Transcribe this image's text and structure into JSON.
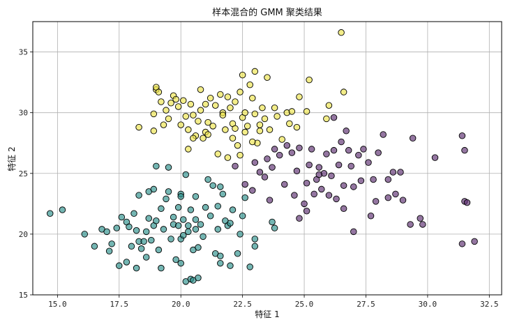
{
  "chart_data": {
    "type": "scatter",
    "title": "样本混合的 GMM 聚类结果",
    "xlabel": "特征 1",
    "ylabel": "特征 2",
    "xlim": [
      14.0,
      33.0
    ],
    "ylim": [
      15.0,
      37.5
    ],
    "xticks": [
      "15.0",
      "17.5",
      "20.0",
      "22.5",
      "25.0",
      "27.5",
      "30.0",
      "32.5"
    ],
    "yticks": [
      "15",
      "20",
      "25",
      "30",
      "35"
    ],
    "grid": true,
    "series": [
      {
        "color": "#2a8f8a",
        "points": [
          [
            14.7,
            21.7
          ],
          [
            15.2,
            22.0
          ],
          [
            16.1,
            20.0
          ],
          [
            16.5,
            19.0
          ],
          [
            16.8,
            20.4
          ],
          [
            17.0,
            20.2
          ],
          [
            17.1,
            18.6
          ],
          [
            17.2,
            19.2
          ],
          [
            17.4,
            20.5
          ],
          [
            17.5,
            17.4
          ],
          [
            17.6,
            21.4
          ],
          [
            17.8,
            17.7
          ],
          [
            17.8,
            21.0
          ],
          [
            17.9,
            20.6
          ],
          [
            18.0,
            19.0
          ],
          [
            18.1,
            21.7
          ],
          [
            18.2,
            17.2
          ],
          [
            18.2,
            20.3
          ],
          [
            18.3,
            19.4
          ],
          [
            18.3,
            23.2
          ],
          [
            18.4,
            18.8
          ],
          [
            18.5,
            19.4
          ],
          [
            18.6,
            20.2
          ],
          [
            18.7,
            21.3
          ],
          [
            18.7,
            23.5
          ],
          [
            18.8,
            19.5
          ],
          [
            18.9,
            23.7
          ],
          [
            18.9,
            20.7
          ],
          [
            19.0,
            21.1
          ],
          [
            19.0,
            25.6
          ],
          [
            19.1,
            18.7
          ],
          [
            19.2,
            17.2
          ],
          [
            19.2,
            22.1
          ],
          [
            19.3,
            20.4
          ],
          [
            19.5,
            23.5
          ],
          [
            19.5,
            25.5
          ],
          [
            19.6,
            19.6
          ],
          [
            19.7,
            20.8
          ],
          [
            19.7,
            21.4
          ],
          [
            19.8,
            17.9
          ],
          [
            19.9,
            20.7
          ],
          [
            19.9,
            22.2
          ],
          [
            20.0,
            23.3
          ],
          [
            20.0,
            19.6
          ],
          [
            20.0,
            17.6
          ],
          [
            20.0,
            23.1
          ],
          [
            20.1,
            21.2
          ],
          [
            20.1,
            19.9
          ],
          [
            20.2,
            24.9
          ],
          [
            20.2,
            16.1
          ],
          [
            20.3,
            20.7
          ],
          [
            20.4,
            22.0
          ],
          [
            20.4,
            16.3
          ],
          [
            20.5,
            16.2
          ],
          [
            20.5,
            18.7
          ],
          [
            20.6,
            23.1
          ],
          [
            20.6,
            21.2
          ],
          [
            20.6,
            20.4
          ],
          [
            20.7,
            18.9
          ],
          [
            20.7,
            16.4
          ],
          [
            20.8,
            20.8
          ],
          [
            20.9,
            19.8
          ],
          [
            21.0,
            22.2
          ],
          [
            21.1,
            24.5
          ],
          [
            21.2,
            21.5
          ],
          [
            21.3,
            24.0
          ],
          [
            21.4,
            18.4
          ],
          [
            21.5,
            20.4
          ],
          [
            21.6,
            23.9
          ],
          [
            21.6,
            18.2
          ],
          [
            21.6,
            17.6
          ],
          [
            21.7,
            23.3
          ],
          [
            21.8,
            21.1
          ],
          [
            21.9,
            20.7
          ],
          [
            22.0,
            20.9
          ],
          [
            22.0,
            17.4
          ],
          [
            22.1,
            22.0
          ],
          [
            22.3,
            18.4
          ],
          [
            22.5,
            21.5
          ],
          [
            22.6,
            23.0
          ],
          [
            22.8,
            17.3
          ],
          [
            23.0,
            19.6
          ],
          [
            23.0,
            19.0
          ],
          [
            23.7,
            21.0
          ],
          [
            23.8,
            20.5
          ],
          [
            19.4,
            22.9
          ],
          [
            21.5,
            22.3
          ],
          [
            18.6,
            18.1
          ],
          [
            20.3,
            20.2
          ],
          [
            22.4,
            20.0
          ]
        ]
      },
      {
        "color": "#ede34a",
        "points": [
          [
            18.3,
            28.8
          ],
          [
            18.9,
            28.5
          ],
          [
            18.9,
            29.9
          ],
          [
            19.0,
            31.9
          ],
          [
            19.0,
            32.1
          ],
          [
            19.1,
            31.7
          ],
          [
            19.2,
            30.9
          ],
          [
            19.3,
            29.0
          ],
          [
            19.4,
            30.2
          ],
          [
            19.5,
            29.5
          ],
          [
            19.6,
            30.8
          ],
          [
            19.7,
            31.4
          ],
          [
            19.8,
            31.1
          ],
          [
            19.9,
            30.5
          ],
          [
            20.0,
            29.0
          ],
          [
            20.1,
            31.0
          ],
          [
            20.2,
            29.7
          ],
          [
            20.3,
            27.0
          ],
          [
            20.4,
            30.7
          ],
          [
            20.5,
            29.8
          ],
          [
            20.6,
            28.1
          ],
          [
            20.7,
            29.3
          ],
          [
            20.8,
            30.2
          ],
          [
            20.9,
            27.9
          ],
          [
            21.0,
            30.7
          ],
          [
            21.0,
            28.4
          ],
          [
            21.1,
            29.2
          ],
          [
            21.2,
            31.2
          ],
          [
            21.3,
            28.9
          ],
          [
            21.4,
            30.6
          ],
          [
            21.5,
            26.6
          ],
          [
            21.6,
            31.5
          ],
          [
            21.7,
            30.0
          ],
          [
            21.8,
            28.6
          ],
          [
            21.9,
            31.3
          ],
          [
            22.0,
            30.4
          ],
          [
            22.1,
            29.1
          ],
          [
            22.2,
            28.7
          ],
          [
            22.2,
            30.9
          ],
          [
            22.3,
            27.3
          ],
          [
            22.4,
            31.7
          ],
          [
            22.5,
            29.6
          ],
          [
            22.5,
            33.1
          ],
          [
            22.6,
            30.0
          ],
          [
            22.7,
            28.9
          ],
          [
            22.8,
            32.3
          ],
          [
            22.9,
            31.2
          ],
          [
            23.0,
            33.4
          ],
          [
            23.0,
            29.9
          ],
          [
            23.1,
            27.5
          ],
          [
            23.2,
            28.5
          ],
          [
            23.3,
            30.4
          ],
          [
            23.4,
            29.5
          ],
          [
            23.5,
            32.9
          ],
          [
            23.6,
            28.6
          ],
          [
            23.8,
            30.4
          ],
          [
            23.9,
            29.7
          ],
          [
            24.1,
            27.8
          ],
          [
            24.3,
            30.0
          ],
          [
            24.4,
            29.1
          ],
          [
            24.5,
            30.1
          ],
          [
            24.7,
            28.8
          ],
          [
            24.8,
            31.3
          ],
          [
            25.1,
            30.1
          ],
          [
            25.2,
            32.7
          ],
          [
            25.9,
            29.5
          ],
          [
            26.0,
            30.6
          ],
          [
            26.6,
            31.7
          ],
          [
            26.5,
            36.6
          ],
          [
            22.4,
            26.5
          ],
          [
            21.9,
            26.3
          ],
          [
            20.5,
            27.9
          ],
          [
            22.9,
            27.6
          ],
          [
            23.2,
            29.0
          ],
          [
            21.1,
            28.2
          ],
          [
            22.6,
            28.4
          ],
          [
            20.8,
            31.9
          ],
          [
            21.7,
            29.8
          ],
          [
            20.3,
            28.6
          ],
          [
            22.1,
            27.9
          ]
        ]
      },
      {
        "color": "#5b2c6f",
        "points": [
          [
            22.2,
            25.6
          ],
          [
            22.6,
            24.1
          ],
          [
            22.9,
            23.6
          ],
          [
            23.0,
            25.9
          ],
          [
            23.2,
            25.1
          ],
          [
            23.4,
            24.7
          ],
          [
            23.5,
            26.2
          ],
          [
            23.6,
            22.8
          ],
          [
            23.7,
            25.5
          ],
          [
            23.8,
            27.0
          ],
          [
            24.0,
            26.5
          ],
          [
            24.2,
            24.1
          ],
          [
            24.3,
            27.3
          ],
          [
            24.5,
            26.7
          ],
          [
            24.6,
            23.2
          ],
          [
            24.7,
            25.2
          ],
          [
            24.8,
            27.1
          ],
          [
            25.0,
            22.5
          ],
          [
            25.1,
            24.2
          ],
          [
            25.2,
            25.7
          ],
          [
            25.3,
            27.0
          ],
          [
            25.4,
            23.3
          ],
          [
            25.5,
            24.5
          ],
          [
            25.6,
            25.5
          ],
          [
            25.7,
            23.7
          ],
          [
            25.8,
            25.0
          ],
          [
            25.9,
            26.6
          ],
          [
            26.0,
            23.2
          ],
          [
            26.1,
            24.8
          ],
          [
            26.2,
            26.9
          ],
          [
            26.3,
            22.9
          ],
          [
            26.4,
            25.7
          ],
          [
            26.5,
            27.6
          ],
          [
            26.6,
            24.0
          ],
          [
            26.7,
            28.5
          ],
          [
            26.8,
            26.9
          ],
          [
            26.9,
            25.6
          ],
          [
            27.0,
            23.9
          ],
          [
            27.0,
            20.2
          ],
          [
            27.2,
            26.5
          ],
          [
            27.3,
            24.4
          ],
          [
            27.4,
            27.0
          ],
          [
            27.6,
            25.9
          ],
          [
            27.8,
            24.5
          ],
          [
            27.9,
            22.7
          ],
          [
            28.0,
            26.7
          ],
          [
            28.2,
            28.2
          ],
          [
            28.4,
            24.5
          ],
          [
            28.6,
            25.1
          ],
          [
            28.7,
            23.3
          ],
          [
            28.9,
            25.1
          ],
          [
            29.0,
            22.8
          ],
          [
            29.3,
            20.8
          ],
          [
            29.4,
            27.9
          ],
          [
            29.7,
            21.3
          ],
          [
            30.3,
            26.3
          ],
          [
            31.4,
            28.1
          ],
          [
            31.4,
            19.2
          ],
          [
            31.5,
            22.7
          ],
          [
            31.6,
            22.6
          ],
          [
            31.9,
            19.4
          ],
          [
            31.5,
            26.9
          ],
          [
            29.8,
            20.8
          ],
          [
            26.2,
            29.6
          ],
          [
            25.6,
            24.9
          ],
          [
            27.7,
            21.5
          ],
          [
            24.8,
            21.3
          ],
          [
            26.6,
            22.1
          ],
          [
            28.4,
            23.0
          ],
          [
            25.1,
            21.9
          ]
        ]
      }
    ]
  }
}
